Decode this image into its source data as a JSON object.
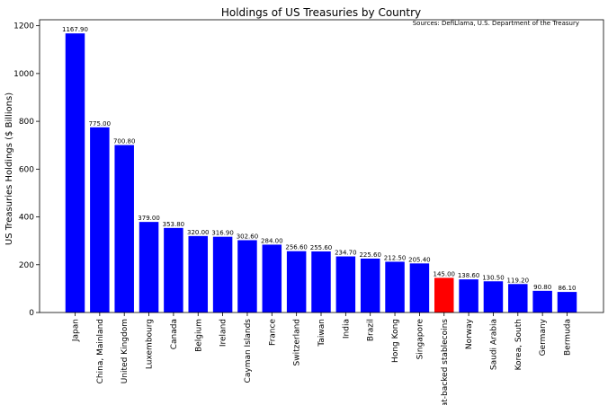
{
  "chart_data": {
    "type": "bar",
    "title": "Holdings of US Treasuries by Country",
    "source": "Sources: DefiLlama, U.S. Department of the Treasury",
    "xlabel": "",
    "ylabel": "US Treasuries Holdings ($ Billions)",
    "ylim": [
      0,
      1225
    ],
    "yticks": [
      0,
      200,
      400,
      600,
      800,
      1000,
      1200
    ],
    "categories": [
      "Japan",
      "China, Mainland",
      "United Kingdom",
      "Luxembourg",
      "Canada",
      "Belgium",
      "Ireland",
      "Cayman Islands",
      "France",
      "Switzerland",
      "Taiwan",
      "India",
      "Brazil",
      "Hong Kong",
      "Singapore",
      "Fiat-backed stablecoins",
      "Norway",
      "Saudi Arabia",
      "Korea, South",
      "Germany",
      "Bermuda"
    ],
    "values": [
      1167.9,
      775.0,
      700.8,
      379.0,
      353.8,
      320.0,
      316.9,
      302.6,
      284.0,
      256.6,
      255.6,
      234.7,
      225.6,
      212.5,
      205.4,
      145.0,
      138.6,
      130.5,
      119.2,
      90.8,
      86.1
    ],
    "data_labels": [
      "1167.90",
      "775.00",
      "700.80",
      "379.00",
      "353.80",
      "320.00",
      "316.90",
      "302.60",
      "284.00",
      "256.60",
      "255.60",
      "234.70",
      "225.60",
      "212.50",
      "205.40",
      "145.00",
      "138.60",
      "130.50",
      "119.20",
      "90.80",
      "86.10"
    ],
    "colors": [
      "#0000ff",
      "#0000ff",
      "#0000ff",
      "#0000ff",
      "#0000ff",
      "#0000ff",
      "#0000ff",
      "#0000ff",
      "#0000ff",
      "#0000ff",
      "#0000ff",
      "#0000ff",
      "#0000ff",
      "#0000ff",
      "#0000ff",
      "#ff0000",
      "#0000ff",
      "#0000ff",
      "#0000ff",
      "#0000ff",
      "#0000ff"
    ],
    "grid": false,
    "legend": "none"
  }
}
